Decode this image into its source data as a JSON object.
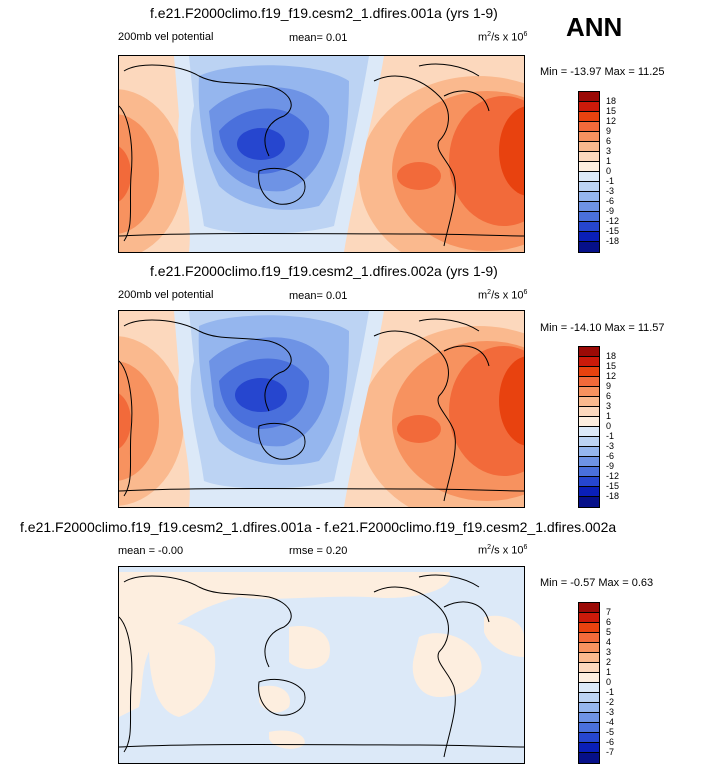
{
  "season": "ANN",
  "panels": [
    {
      "title": "f.e21.F2000climo.f19_f19.cesm2_1.dfires.001a (yrs 1-9)",
      "left_label": "200mb vel potential",
      "center_label": "mean=  0.01",
      "units": "m",
      "units_sup1": "2",
      "units_mid": "/s x 10",
      "units_sup2": "6",
      "minmax": "Min = -13.97 Max =  11.25",
      "levels": [
        "18",
        "15",
        "12",
        "9",
        "6",
        "3",
        "1",
        "0",
        "-1",
        "-3",
        "-6",
        "-9",
        "-12",
        "-15",
        "-18"
      ],
      "colors": [
        "#9b0a06",
        "#cb1a0a",
        "#e8420f",
        "#f26a3a",
        "#f7925f",
        "#fab98e",
        "#fcd8bd",
        "#fdeedf",
        "#dce9f8",
        "#bcd3f3",
        "#95b6ee",
        "#6e93e5",
        "#4a70dc",
        "#2646cf",
        "#0a1fb8",
        "#061089"
      ]
    },
    {
      "title": "f.e21.F2000climo.f19_f19.cesm2_1.dfires.002a (yrs 1-9)",
      "left_label": "200mb vel potential",
      "center_label": "mean=  0.01",
      "units": "m",
      "units_sup1": "2",
      "units_mid": "/s x 10",
      "units_sup2": "6",
      "minmax": "Min = -14.10 Max =  11.57",
      "levels": [
        "18",
        "15",
        "12",
        "9",
        "6",
        "3",
        "1",
        "0",
        "-1",
        "-3",
        "-6",
        "-9",
        "-12",
        "-15",
        "-18"
      ],
      "colors": [
        "#9b0a06",
        "#cb1a0a",
        "#e8420f",
        "#f26a3a",
        "#f7925f",
        "#fab98e",
        "#fcd8bd",
        "#fdeedf",
        "#dce9f8",
        "#bcd3f3",
        "#95b6ee",
        "#6e93e5",
        "#4a70dc",
        "#2646cf",
        "#0a1fb8",
        "#061089"
      ]
    },
    {
      "title": "f.e21.F2000climo.f19_f19.cesm2_1.dfires.001a - f.e21.F2000climo.f19_f19.cesm2_1.dfires.002a",
      "left_label": "mean = -0.00",
      "center_label": "rmse =  0.20",
      "units": "m",
      "units_sup1": "2",
      "units_mid": "/s x 10",
      "units_sup2": "6",
      "minmax": "Min =  -0.57 Max =   0.63",
      "levels": [
        "7",
        "6",
        "5",
        "4",
        "3",
        "2",
        "1",
        "0",
        "-1",
        "-2",
        "-3",
        "-4",
        "-5",
        "-6",
        "-7"
      ],
      "colors": [
        "#9b0a06",
        "#cb1a0a",
        "#e8420f",
        "#f26a3a",
        "#f7925f",
        "#fab98e",
        "#fcd8bd",
        "#fdeedf",
        "#dce9f8",
        "#bcd3f3",
        "#95b6ee",
        "#6e93e5",
        "#4a70dc",
        "#2646cf",
        "#0a1fb8",
        "#061089"
      ]
    }
  ]
}
